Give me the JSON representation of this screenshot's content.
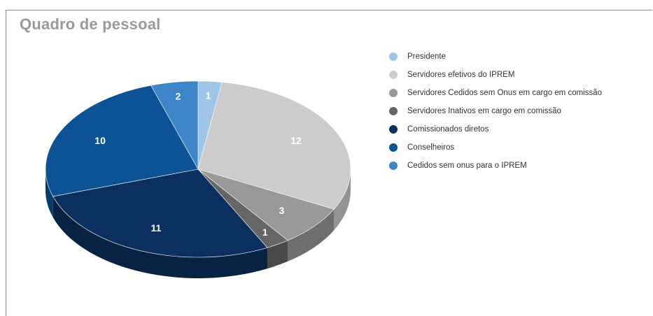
{
  "chart_data": {
    "type": "pie",
    "title": "Quadro de pessoal",
    "legend_position": "right",
    "three_d": true,
    "slices": [
      {
        "name": "Presidente",
        "value": 1,
        "color": "#9fc5e8"
      },
      {
        "name": "Servidores efetivos do IPREM",
        "value": 12,
        "color": "#cccccc"
      },
      {
        "name": "Servidores Cedidos  sem Onus em cargo em comissão",
        "value": 3,
        "color": "#999999"
      },
      {
        "name": "Servidores Inativos em cargo em comissão",
        "value": 1,
        "color": "#666666"
      },
      {
        "name": "Comissionados diretos",
        "value": 11,
        "color": "#0b2f5e"
      },
      {
        "name": "Conselheiros",
        "value": 10,
        "color": "#0b5394"
      },
      {
        "name": "Cedidos sem onus para o IPREM",
        "value": 2,
        "color": "#3d85c6"
      }
    ]
  }
}
